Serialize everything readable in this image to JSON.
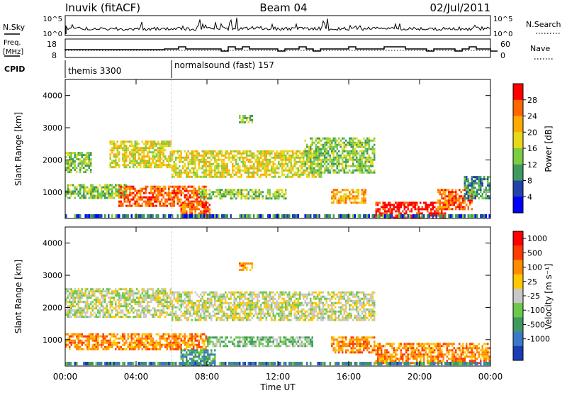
{
  "header": {
    "station": "Inuvik (fitACF)",
    "beam": "Beam 04",
    "date": "02/Jul/2011"
  },
  "nsky_panel": {
    "left_label": "N.Sky",
    "right_label": "N.Search",
    "left_ticks": [
      "10^5",
      "10^0"
    ],
    "right_ticks": [
      "10^5",
      "10^0"
    ]
  },
  "freq_panel": {
    "left_label_top": "Freq.",
    "left_label_bottom": "[MHz]",
    "right_label": "Nave",
    "left_ticks": [
      "18",
      "8"
    ],
    "right_ticks": [
      "60",
      "0"
    ]
  },
  "cpid": {
    "label": "CPID",
    "segments": [
      {
        "name": "themis 3300",
        "start_hour": 0
      },
      {
        "name": "normalsound (fast) 157",
        "start_hour": 6
      }
    ]
  },
  "chart_data": [
    {
      "type": "heatmap",
      "name": "power",
      "ylabel": "Slant Range [km]",
      "ylim": [
        180,
        4500
      ],
      "yticks": [
        1000,
        2000,
        3000,
        4000
      ],
      "xlim": [
        0,
        24
      ],
      "colorbar_label": "Power [dB]",
      "colorbar_ticks": [
        "4",
        "8",
        "12",
        "16",
        "20",
        "24",
        "28"
      ],
      "colorbar_colors": [
        "#0000ff",
        "#2244aa",
        "#3e9a60",
        "#7ccc44",
        "#e8d81a",
        "#ffaa00",
        "#ff6600",
        "#ff0000"
      ],
      "regions": [
        {
          "t0": 0.0,
          "t1": 1.5,
          "r0": 1650,
          "r1": 2250,
          "level": 3
        },
        {
          "t0": 2.5,
          "t1": 6.0,
          "r0": 1800,
          "r1": 2600,
          "level": 4
        },
        {
          "t0": 0.0,
          "t1": 3.5,
          "r0": 850,
          "r1": 1250,
          "level": 3
        },
        {
          "t0": 3.0,
          "t1": 8.0,
          "r0": 600,
          "r1": 1200,
          "level": 6
        },
        {
          "t0": 6.5,
          "t1": 8.2,
          "r0": 200,
          "r1": 700,
          "level": 6
        },
        {
          "t0": 6.0,
          "t1": 14.5,
          "r0": 1500,
          "r1": 2300,
          "level": 4
        },
        {
          "t0": 7.5,
          "t1": 12.5,
          "r0": 800,
          "r1": 1100,
          "level": 3
        },
        {
          "t0": 13.5,
          "t1": 17.5,
          "r0": 1600,
          "r1": 2700,
          "level": 3
        },
        {
          "t0": 15.0,
          "t1": 17.0,
          "r0": 650,
          "r1": 1100,
          "level": 5
        },
        {
          "t0": 17.5,
          "t1": 21.5,
          "r0": 230,
          "r1": 700,
          "level": 7
        },
        {
          "t0": 21.0,
          "t1": 23.0,
          "r0": 500,
          "r1": 1100,
          "level": 6
        },
        {
          "t0": 22.5,
          "t1": 24.0,
          "r0": 800,
          "r1": 1500,
          "level": 2
        },
        {
          "t0": 9.8,
          "t1": 10.6,
          "r0": 3150,
          "r1": 3400,
          "level": 3
        }
      ]
    },
    {
      "type": "heatmap",
      "name": "velocity",
      "ylabel": "Slant Range [km]",
      "ylim": [
        180,
        4500
      ],
      "yticks": [
        1000,
        2000,
        3000,
        4000
      ],
      "xlim": [
        0,
        24
      ],
      "colorbar_label": "Velocity [m s⁻¹]",
      "colorbar_ticks": [
        "1000",
        "500",
        "100",
        "25",
        "-25",
        "-100",
        "-500",
        "-1000"
      ],
      "colorbar_colors": [
        "#1a3cb4",
        "#3c78c8",
        "#3e9a60",
        "#6cc84a",
        "#c8c8c8",
        "#ffc800",
        "#ff8c00",
        "#ff3c00",
        "#ff0000"
      ],
      "regions": [
        {
          "t0": 0.0,
          "t1": 6.0,
          "r0": 1700,
          "r1": 2600,
          "level": 4
        },
        {
          "t0": 6.0,
          "t1": 17.5,
          "r0": 1600,
          "r1": 2500,
          "level": 4
        },
        {
          "t0": 0.0,
          "t1": 8.0,
          "r0": 700,
          "r1": 1200,
          "level": 6
        },
        {
          "t0": 6.5,
          "t1": 8.5,
          "r0": 200,
          "r1": 700,
          "level": 2
        },
        {
          "t0": 8.0,
          "t1": 14.0,
          "r0": 800,
          "r1": 1100,
          "level": 3
        },
        {
          "t0": 15.0,
          "t1": 17.5,
          "r0": 600,
          "r1": 1100,
          "level": 6
        },
        {
          "t0": 17.5,
          "t1": 24.0,
          "r0": 250,
          "r1": 900,
          "level": 6
        },
        {
          "t0": 9.8,
          "t1": 10.6,
          "r0": 3150,
          "r1": 3400,
          "level": 6
        }
      ]
    }
  ],
  "xaxis": {
    "label": "Time UT",
    "ticks": [
      {
        "hour": 0,
        "label": "00:00"
      },
      {
        "hour": 4,
        "label": "04:00"
      },
      {
        "hour": 8,
        "label": "08:00"
      },
      {
        "hour": 12,
        "label": "12:00"
      },
      {
        "hour": 16,
        "label": "16:00"
      },
      {
        "hour": 20,
        "label": "20:00"
      },
      {
        "hour": 24,
        "label": "00:00"
      }
    ]
  }
}
